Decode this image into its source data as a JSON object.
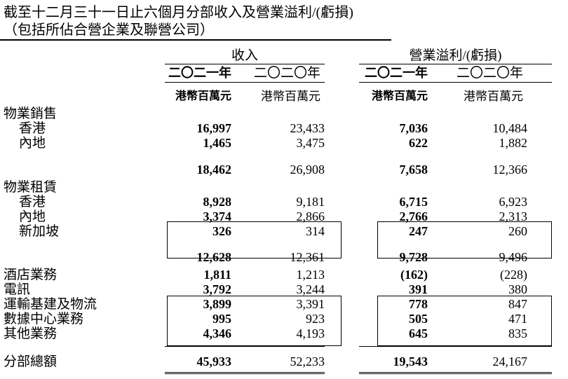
{
  "title": {
    "line1": "截至十二月三十一日止六個月分部收入及營業溢利/(虧損)",
    "line2": "（包括所佔合營企業及聯營公司）"
  },
  "table": {
    "group_headers": {
      "revenue": "收入",
      "operating": "營業溢利/(虧損)"
    },
    "year_headers": {
      "rev_2021": "二〇二一年",
      "rev_2020": "二〇二〇年",
      "op_2021": "二〇二一年",
      "op_2020": "二〇二〇年"
    },
    "unit_headers": {
      "rev_2021": "港幣百萬元",
      "rev_2020": "港幣百萬元",
      "op_2021": "港幣百萬元",
      "op_2020": "港幣百萬元"
    },
    "rows": [
      {
        "type": "section",
        "label": "物業銷售"
      },
      {
        "type": "data",
        "label": "香港",
        "rev2021": "16,997",
        "rev2020": "23,433",
        "op2021": "7,036",
        "op2020": "10,484"
      },
      {
        "type": "data",
        "label": "內地",
        "rev2021": "1,465",
        "rev2020": "3,475",
        "op2021": "622",
        "op2020": "1,882"
      },
      {
        "type": "subtotal",
        "label": "",
        "rev2021": "18,462",
        "rev2020": "26,908",
        "op2021": "7,658",
        "op2020": "12,366"
      },
      {
        "type": "section",
        "label": "物業租賃"
      },
      {
        "type": "data",
        "label": "香港",
        "rev2021": "8,928",
        "rev2020": "9,181",
        "op2021": "6,715",
        "op2020": "6,923"
      },
      {
        "type": "data",
        "label": "內地",
        "rev2021": "3,374",
        "rev2020": "2,866",
        "op2021": "2,766",
        "op2020": "2,313"
      },
      {
        "type": "data",
        "label": "新加坡",
        "rev2021": "326",
        "rev2020": "314",
        "op2021": "247",
        "op2020": "260"
      },
      {
        "type": "subtotal",
        "label": "",
        "rev2021": "12,628",
        "rev2020": "12,361",
        "op2021": "9,728",
        "op2020": "9,496"
      },
      {
        "type": "item",
        "label": "酒店業務",
        "rev2021": "1,811",
        "rev2020": "1,213",
        "op2021": "(162)",
        "op2020": "(228)"
      },
      {
        "type": "item",
        "label": "電訊",
        "rev2021": "3,792",
        "rev2020": "3,244",
        "op2021": "391",
        "op2020": "380"
      },
      {
        "type": "item",
        "label": "運輸基建及物流",
        "rev2021": "3,899",
        "rev2020": "3,391",
        "op2021": "778",
        "op2020": "847"
      },
      {
        "type": "item",
        "label": "數據中心業務",
        "rev2021": "995",
        "rev2020": "923",
        "op2021": "505",
        "op2020": "471"
      },
      {
        "type": "item",
        "label": "其他業務",
        "rev2021": "4,346",
        "rev2020": "4,193",
        "op2021": "645",
        "op2020": "835"
      },
      {
        "type": "total",
        "label": "分部總額",
        "rev2021": "45,933",
        "rev2020": "52,233",
        "op2021": "19,543",
        "op2020": "24,167"
      }
    ]
  }
}
